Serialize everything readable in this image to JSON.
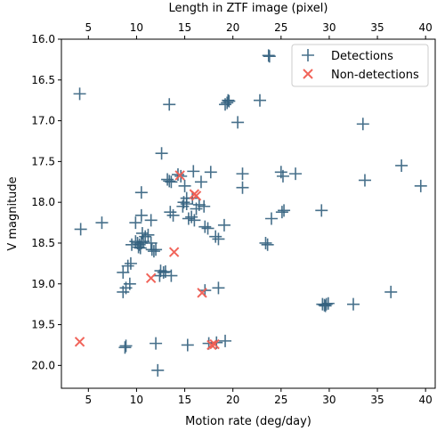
{
  "chart_data": {
    "type": "scatter",
    "xlabel": "Motion rate (deg/day)",
    "ylabel": "V magnitude",
    "top_xlabel": "Length in ZTF image (pixel)",
    "xlim": [
      2.2,
      41.0
    ],
    "ylim": [
      20.28,
      16.0
    ],
    "y_inverted": true,
    "xticks": [
      5,
      10,
      15,
      20,
      25,
      30,
      35,
      40
    ],
    "yticks": [
      16.0,
      16.5,
      17.0,
      17.5,
      18.0,
      18.5,
      19.0,
      19.5,
      20.0
    ],
    "top_xticks": [
      5,
      10,
      15,
      20,
      25,
      30,
      35,
      40
    ],
    "top_axis_factor": 1.0,
    "grid": false,
    "legend_position": "top-right",
    "series": [
      {
        "name": "Detections",
        "marker": "plus",
        "color": "#33607e",
        "points": [
          [
            23.7,
            16.2
          ],
          [
            23.8,
            16.21
          ],
          [
            4.1,
            16.67
          ],
          [
            19.5,
            16.75
          ],
          [
            19.6,
            16.76
          ],
          [
            19.2,
            16.8
          ],
          [
            19.4,
            16.78
          ],
          [
            22.8,
            16.75
          ],
          [
            13.4,
            16.8
          ],
          [
            20.5,
            17.02
          ],
          [
            33.5,
            17.04
          ],
          [
            12.6,
            17.4
          ],
          [
            37.5,
            17.55
          ],
          [
            14.3,
            17.66
          ],
          [
            14.6,
            17.68
          ],
          [
            15.9,
            17.62
          ],
          [
            17.7,
            17.63
          ],
          [
            21.0,
            17.65
          ],
          [
            25.0,
            17.63
          ],
          [
            25.2,
            17.68
          ],
          [
            26.5,
            17.65
          ],
          [
            13.2,
            17.72
          ],
          [
            13.4,
            17.74
          ],
          [
            13.6,
            17.75
          ],
          [
            16.7,
            17.75
          ],
          [
            33.7,
            17.73
          ],
          [
            39.5,
            17.8
          ],
          [
            15.0,
            17.8
          ],
          [
            21.0,
            17.82
          ],
          [
            10.5,
            17.88
          ],
          [
            15.2,
            17.95
          ],
          [
            15.8,
            17.95
          ],
          [
            14.9,
            18.0
          ],
          [
            15.2,
            18.02
          ],
          [
            14.8,
            18.05
          ],
          [
            16.2,
            18.08
          ],
          [
            16.5,
            18.03
          ],
          [
            17.0,
            18.05
          ],
          [
            13.5,
            18.12
          ],
          [
            13.8,
            18.16
          ],
          [
            10.5,
            18.16
          ],
          [
            15.4,
            18.2
          ],
          [
            15.7,
            18.18
          ],
          [
            16.0,
            18.22
          ],
          [
            24.0,
            18.2
          ],
          [
            25.1,
            18.12
          ],
          [
            25.3,
            18.1
          ],
          [
            29.2,
            18.1
          ],
          [
            6.4,
            18.25
          ],
          [
            9.9,
            18.25
          ],
          [
            11.5,
            18.22
          ],
          [
            19.1,
            18.28
          ],
          [
            4.2,
            18.33
          ],
          [
            17.1,
            18.3
          ],
          [
            17.4,
            18.32
          ],
          [
            18.2,
            18.42
          ],
          [
            18.5,
            18.45
          ],
          [
            10.6,
            18.38
          ],
          [
            10.9,
            18.42
          ],
          [
            11.2,
            18.4
          ],
          [
            9.9,
            18.48
          ],
          [
            10.1,
            18.5
          ],
          [
            10.3,
            18.52
          ],
          [
            10.5,
            18.5
          ],
          [
            10.7,
            18.48
          ],
          [
            10.2,
            18.55
          ],
          [
            10.4,
            18.56
          ],
          [
            9.5,
            18.52
          ],
          [
            11.5,
            18.5
          ],
          [
            23.4,
            18.5
          ],
          [
            23.6,
            18.52
          ],
          [
            11.6,
            18.58
          ],
          [
            11.8,
            18.6
          ],
          [
            12.0,
            18.58
          ],
          [
            9.4,
            18.75
          ],
          [
            9.1,
            18.78
          ],
          [
            12.5,
            18.84
          ],
          [
            12.8,
            18.86
          ],
          [
            13.0,
            18.85
          ],
          [
            8.6,
            18.86
          ],
          [
            12.4,
            18.9
          ],
          [
            13.6,
            18.9
          ],
          [
            9.3,
            19.0
          ],
          [
            8.9,
            19.05
          ],
          [
            8.6,
            19.1
          ],
          [
            17.1,
            19.08
          ],
          [
            18.5,
            19.05
          ],
          [
            36.4,
            19.1
          ],
          [
            29.3,
            19.25
          ],
          [
            29.5,
            19.26
          ],
          [
            29.7,
            19.25
          ],
          [
            29.9,
            19.24
          ],
          [
            29.6,
            19.27
          ],
          [
            32.5,
            19.25
          ],
          [
            19.2,
            19.7
          ],
          [
            18.3,
            19.72
          ],
          [
            12.0,
            19.73
          ],
          [
            15.3,
            19.75
          ],
          [
            8.9,
            19.76
          ],
          [
            8.8,
            19.78
          ],
          [
            17.5,
            19.73
          ],
          [
            12.2,
            20.06
          ]
        ]
      },
      {
        "name": "Non-detections",
        "marker": "x",
        "color": "#f05c51",
        "points": [
          [
            4.1,
            19.71
          ],
          [
            11.5,
            18.93
          ],
          [
            14.5,
            17.67
          ],
          [
            16.0,
            17.9
          ],
          [
            16.2,
            17.92
          ],
          [
            13.9,
            18.61
          ],
          [
            16.8,
            19.11
          ],
          [
            17.8,
            19.75
          ],
          [
            18.1,
            19.74
          ]
        ]
      }
    ]
  }
}
